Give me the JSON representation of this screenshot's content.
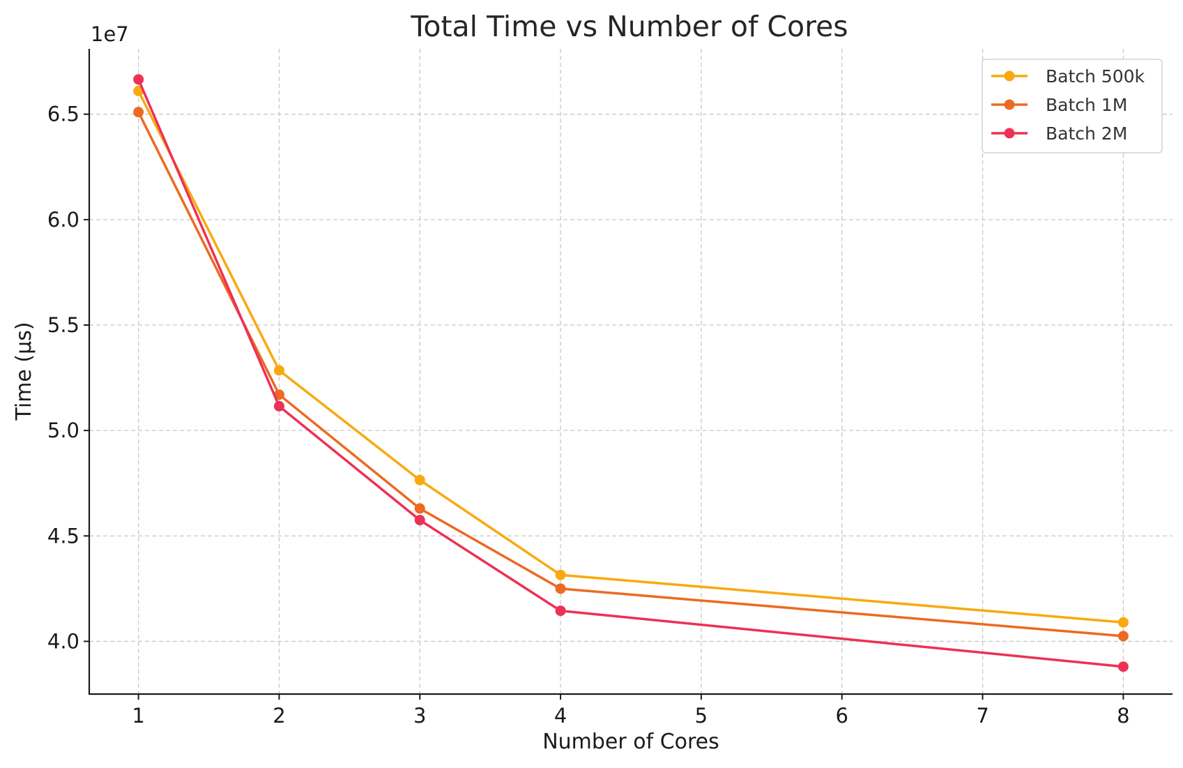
{
  "chart_data": {
    "type": "line",
    "title": "Total Time vs Number of Cores",
    "xlabel": "Number of Cores",
    "ylabel": "Time (µs)",
    "y_offset_label": "1e7",
    "x": [
      1,
      2,
      3,
      4,
      8
    ],
    "x_ticks": [
      1,
      2,
      3,
      4,
      5,
      6,
      7,
      8
    ],
    "x_tick_labels": [
      "1",
      "2",
      "3",
      "4",
      "5",
      "6",
      "7",
      "8"
    ],
    "y_ticks": [
      4.0,
      4.5,
      5.0,
      5.5,
      6.0,
      6.5
    ],
    "y_tick_labels": [
      "4.0",
      "4.5",
      "5.0",
      "5.5",
      "6.0",
      "6.5"
    ],
    "xlim": [
      0.65,
      8.35
    ],
    "ylim": [
      3.75,
      6.81
    ],
    "grid": true,
    "legend_position": "top-right",
    "series": [
      {
        "name": "Batch 500k",
        "color": "#F9A90F",
        "values": [
          6.61,
          5.285,
          4.765,
          4.315,
          4.09
        ]
      },
      {
        "name": "Batch 1M",
        "color": "#EC6A22",
        "values": [
          6.51,
          5.17,
          4.63,
          4.25,
          4.025
        ]
      },
      {
        "name": "Batch 2M",
        "color": "#EE3055",
        "values": [
          6.665,
          5.115,
          4.575,
          4.145,
          3.88
        ]
      }
    ]
  }
}
